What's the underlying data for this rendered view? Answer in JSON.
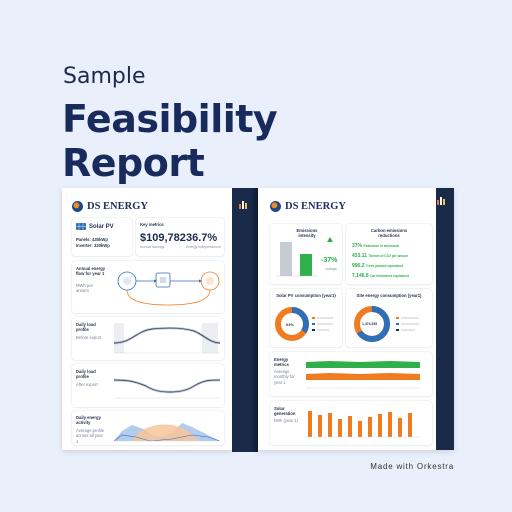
{
  "header": {
    "line1": "Sample",
    "line2": "Feasibility",
    "line3": "Report"
  },
  "brand": {
    "name": "DS ENERGY"
  },
  "left_page": {
    "solar": {
      "title": "Solar PV",
      "panels_label": "Panels:",
      "panels_value": "430kWp",
      "inverter_label": "Inverter:",
      "inverter_value": "330kWp"
    },
    "key_metrics": {
      "title": "Key metrics",
      "annual_savings": "$109,782",
      "annual_savings_label": "Annual savings",
      "energy_independence": "36.7%",
      "energy_independence_label": "Energy independence"
    },
    "energy_flow": {
      "title": "Annual energy flow for year 1",
      "unit": "MWh per annum"
    },
    "profile_before": {
      "title": "Daily load profile",
      "sub": "Before export"
    },
    "profile_after": {
      "title": "Daily load profile",
      "sub": "After export"
    },
    "activity": {
      "title": "Daily energy activity",
      "sub": "Average profile across all year 1"
    }
  },
  "right_page": {
    "emissions": {
      "title": "Emissions intensity",
      "change": "-37%",
      "change_label": "change"
    },
    "carbon": {
      "title": "Carbon emissions reductions",
      "rows": [
        {
          "value": "37%",
          "label": "Reduction in emissions"
        },
        {
          "value": "433.11",
          "label": "Tonnes of CO2 per annum"
        },
        {
          "value": "996.2",
          "label": "Trees planted equivalent"
        },
        {
          "value": "7,146.8",
          "label": "Car kilometres equivalent"
        }
      ]
    },
    "solar_consumption": {
      "title": "Solar PV consumption (year1)",
      "center": "63%"
    },
    "site_consumption": {
      "title": "Site energy consumption (year1)",
      "center": "1,474,355"
    },
    "energy_metrics": {
      "title": "Energy metrics",
      "sub": "Average monthly for year 1"
    },
    "generation": {
      "title": "Solar generation",
      "sub": "kWh (year 1)"
    }
  },
  "footer": {
    "made_with": "Made with Orkestra"
  },
  "colors": {
    "navy": "#1a2b4a",
    "orange": "#f07c22",
    "green": "#2fb04a",
    "blue": "#2f6fb8"
  }
}
